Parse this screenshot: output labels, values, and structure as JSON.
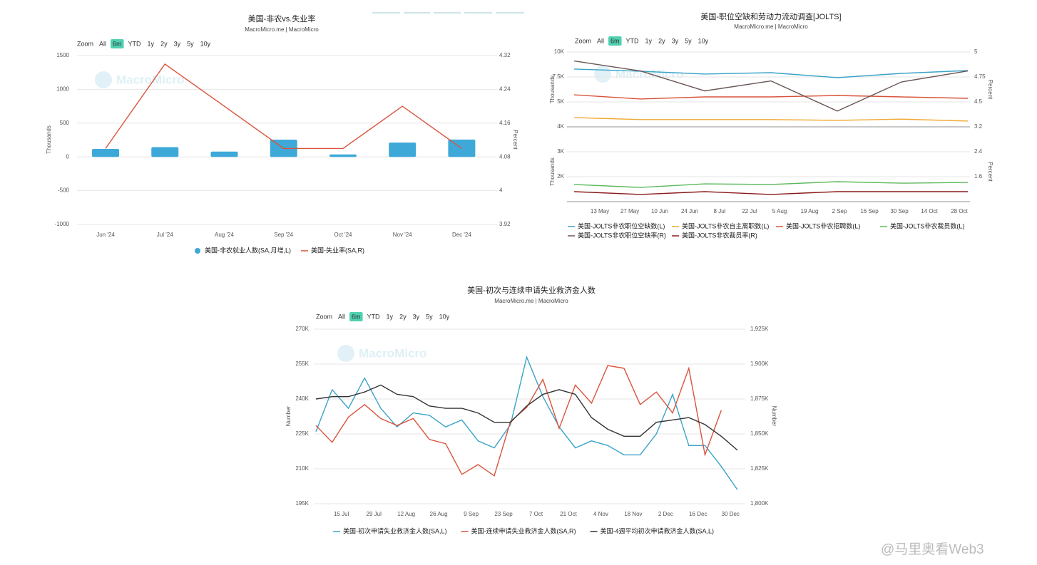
{
  "footer_watermark": "@马里奥看Web3",
  "chart_data": [
    {
      "type": "bar",
      "title": "美国-非农vs.失业率",
      "subtitle": "MacroMicro.me | MacroMicro",
      "watermark": "MacroMicro",
      "zoom_label": "Zoom",
      "zoom_buttons": [
        "All",
        "6m",
        "YTD",
        "1y",
        "2y",
        "3y",
        "5y",
        "10y"
      ],
      "zoom_selected": 1,
      "categories": [
        "Jun '24",
        "Jul '24",
        "Aug '24",
        "Sep '24",
        "Oct '24",
        "Nov '24",
        "Dec '24"
      ],
      "series": [
        {
          "name": "美国-非农就业人数(SA,月增,L)",
          "type": "bar",
          "color": "#3ea9d8",
          "values": [
            118,
            144,
            78,
            255,
            36,
            212,
            256
          ]
        },
        {
          "name": "美国-失业率(SA,R)",
          "type": "line",
          "axis": "y2",
          "color": "#d9533b",
          "values": [
            4.1,
            4.3,
            4.2,
            4.1,
            4.1,
            4.2,
            4.1
          ]
        }
      ],
      "ylabel": "Thousands",
      "y2label": "Percent",
      "ylim": [
        -1000,
        1500
      ],
      "yticks": [
        -1000,
        -500,
        0,
        500,
        1000,
        1500
      ],
      "y2lim": [
        3.92,
        4.32
      ],
      "y2ticks": [
        3.92,
        4,
        4.08,
        4.16,
        4.24,
        4.32
      ],
      "grid": true
    },
    {
      "type": "line",
      "title": "美国-职位空缺和劳动力流动调查[JOLTS]",
      "subtitle": "MacroMicro.me | MacroMicro",
      "watermark": "MacroMicro",
      "zoom_label": "Zoom",
      "zoom_buttons": [
        "All",
        "6m",
        "YTD",
        "1y",
        "2y",
        "3y",
        "5y",
        "10y"
      ],
      "zoom_selected": 1,
      "x": [
        "1 May",
        "1 Jun",
        "1 Jul",
        "1 Aug",
        "1 Sep",
        "1 Oct",
        "1 Nov"
      ],
      "xticks": [
        "13 May",
        "27 May",
        "10 Jun",
        "24 Jun",
        "8 Jul",
        "22 Jul",
        "5 Aug",
        "19 Aug",
        "2 Sep",
        "16 Sep",
        "30 Sep",
        "14 Oct",
        "28 Oct"
      ],
      "panels": [
        {
          "ylabel": "Thousands",
          "y2label": "Percent",
          "ylim": [
            4000,
            10000
          ],
          "yticks": [
            {
              "value": 4000,
              "label": "4K"
            },
            {
              "value": 5000,
              "label": "5K"
            },
            {
              "value": 7500,
              "label": "7.5K"
            },
            {
              "value": 10000,
              "label": "10K"
            }
          ],
          "y2lim": [
            3.2,
            5
          ],
          "y2ticks": [
            3.2,
            4.5,
            4.75,
            5
          ],
          "tick_spacing": "even"
        },
        {
          "ylabel": "Thousands",
          "y2label": "Percent",
          "ylim": [
            1000,
            3400
          ],
          "yticks": [
            {
              "value": 2000,
              "label": "2K"
            },
            {
              "value": 3000,
              "label": "3K"
            }
          ],
          "y2lim": [
            0.8,
            2.72
          ],
          "y2ticks": [
            1.6,
            2.4
          ],
          "tick_spacing": "linear"
        }
      ],
      "series": [
        {
          "name": "美国-JOLTS非农职位空缺数(L)",
          "color": "#3ba3c9",
          "panel": 0,
          "values": [
            8290,
            8070,
            7790,
            7930,
            7430,
            7860,
            8140
          ]
        },
        {
          "name": "美国-JOLTS非农自主离职数(L)",
          "color": "#f0a830",
          "panel": 0,
          "values": [
            4370,
            4290,
            4290,
            4290,
            4260,
            4310,
            4230
          ]
        },
        {
          "name": "美国-JOLTS非农招聘数(L)",
          "color": "#d9533b",
          "panel": 0,
          "values": [
            5710,
            5290,
            5500,
            5500,
            5640,
            5500,
            5360
          ]
        },
        {
          "name": "美国-JOLTS非农裁员数(L)",
          "color": "#5cb85c",
          "panel": 1,
          "values": [
            1690,
            1570,
            1710,
            1690,
            1800,
            1740,
            1770
          ]
        },
        {
          "name": "美国-JOLTS非农职位空缺率(R)",
          "color": "#6b5555",
          "panel": 0,
          "axis": "y2",
          "values": [
            4.91,
            4.81,
            4.61,
            4.71,
            4.02,
            4.7,
            4.81
          ]
        },
        {
          "name": "美国-JOLTS非农裁员率(R)",
          "color": "#8b1a1a",
          "panel": 1,
          "axis": "y2",
          "values": [
            1.12,
            1.03,
            1.12,
            1.03,
            1.12,
            1.12,
            1.12
          ]
        }
      ],
      "grid": true
    },
    {
      "type": "line",
      "title": "美国-初次与连续申请失业救济金人数",
      "subtitle": "MacroMicro.me | MacroMicro",
      "watermark": "MacroMicro",
      "zoom_label": "Zoom",
      "zoom_buttons": [
        "All",
        "6m",
        "YTD",
        "1y",
        "2y",
        "3y",
        "5y",
        "10y"
      ],
      "zoom_selected": 1,
      "x": [
        "4 Jul",
        "11 Jul",
        "18 Jul",
        "25 Jul",
        "1 Aug",
        "8 Aug",
        "15 Aug",
        "22 Aug",
        "29 Aug",
        "5 Sep",
        "12 Sep",
        "19 Sep",
        "26 Sep",
        "3 Oct",
        "10 Oct",
        "17 Oct",
        "24 Oct",
        "31 Oct",
        "7 Nov",
        "14 Nov",
        "21 Nov",
        "28 Nov",
        "5 Dec",
        "12 Dec",
        "19 Dec",
        "26 Dec",
        "2 Jan"
      ],
      "xticks": [
        "15 Jul",
        "29 Jul",
        "12 Aug",
        "26 Aug",
        "9 Sep",
        "23 Sep",
        "7 Oct",
        "21 Oct",
        "4 Nov",
        "18 Nov",
        "2 Dec",
        "16 Dec",
        "30 Dec"
      ],
      "ylabel": "Number",
      "y2label": "Number",
      "ylim": [
        195000,
        270000
      ],
      "yticks": [
        {
          "value": 195000,
          "label": "195K"
        },
        {
          "value": 210000,
          "label": "210K"
        },
        {
          "value": 225000,
          "label": "225K"
        },
        {
          "value": 240000,
          "label": "240K"
        },
        {
          "value": 255000,
          "label": "255K"
        },
        {
          "value": 270000,
          "label": "270K"
        }
      ],
      "y2lim": [
        1800000,
        1925000
      ],
      "y2ticks": [
        {
          "value": 1800000,
          "label": "1,800K"
        },
        {
          "value": 1825000,
          "label": "1,825K"
        },
        {
          "value": 1850000,
          "label": "1,850K"
        },
        {
          "value": 1875000,
          "label": "1,875K"
        },
        {
          "value": 1900000,
          "label": "1,900K"
        },
        {
          "value": 1925000,
          "label": "1,925K"
        }
      ],
      "series": [
        {
          "name": "美国-初次申请失业救济金人数(SA,L)",
          "color": "#3ba3c9",
          "values": [
            226000,
            244000,
            236000,
            249000,
            236000,
            228000,
            234000,
            233000,
            228000,
            231000,
            222000,
            219000,
            229000,
            258000,
            241000,
            228000,
            219000,
            222000,
            220000,
            216000,
            216000,
            225000,
            242000,
            220000,
            220000,
            211000,
            201000
          ]
        },
        {
          "name": "美国-连续申请失业救济金人数(SA,R)",
          "color": "#d9533b",
          "axis": "y2",
          "values": [
            1856000,
            1844000,
            1862000,
            1871000,
            1861000,
            1856000,
            1861000,
            1846000,
            1843000,
            1821000,
            1828000,
            1820000,
            1859000,
            1869000,
            1889000,
            1854000,
            1885000,
            1872000,
            1899000,
            1897000,
            1871000,
            1880000,
            1865000,
            1897000,
            1835000,
            1867000,
            null
          ]
        },
        {
          "name": "美国-4週平均初次申请救济金人数(SA,L)",
          "color": "#333333",
          "values": [
            240000,
            241000,
            241000,
            243000,
            246000,
            242000,
            241000,
            237000,
            236000,
            236000,
            234000,
            230000,
            230000,
            237000,
            242000,
            244000,
            242000,
            232000,
            227000,
            224000,
            224000,
            230000,
            231000,
            232000,
            229000,
            224000,
            218000
          ]
        }
      ],
      "grid": true
    }
  ]
}
